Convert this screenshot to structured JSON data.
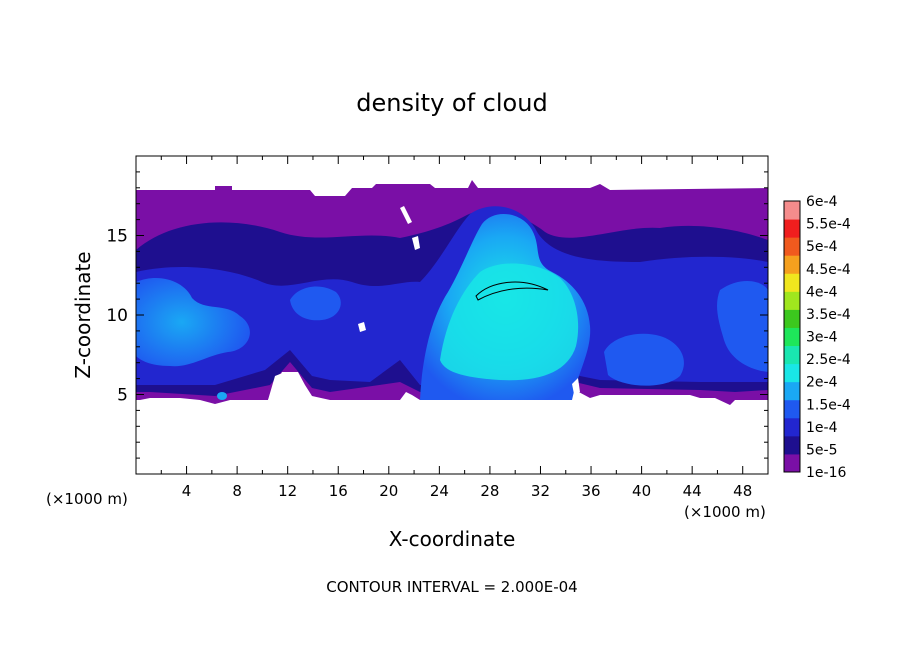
{
  "chart_data": {
    "type": "heatmap",
    "title": "density of cloud",
    "xlabel": "X-coordinate",
    "ylabel": "Z-coordinate",
    "x_unit": "(×1000 m)",
    "x_unit_right": "(×1000 m)",
    "xlim": [
      0,
      50
    ],
    "ylim": [
      0,
      20
    ],
    "x_ticks": [
      "4",
      "8",
      "12",
      "16",
      "20",
      "24",
      "28",
      "32",
      "36",
      "40",
      "44",
      "48"
    ],
    "y_ticks": [
      "5",
      "10",
      "15"
    ],
    "footer": "CONTOUR INTERVAL = 2.000E-04",
    "colorbar": {
      "labels": [
        "1e-16",
        "5e-5",
        "1e-4",
        "1.5e-4",
        "2e-4",
        "2.5e-4",
        "3e-4",
        "3.5e-4",
        "4e-4",
        "4.5e-4",
        "5e-4",
        "5.5e-4",
        "6e-4"
      ],
      "colors": [
        "#7a0fa6",
        "#1e0f8f",
        "#2226cf",
        "#1f59f0",
        "#1aa8f4",
        "#19e6e6",
        "#19e6b0",
        "#1ee65a",
        "#3cc81e",
        "#a0e61e",
        "#f0e61e",
        "#f5a01e",
        "#f05a1e",
        "#f01e1e",
        "#f58c8c"
      ]
    },
    "regions": [
      {
        "name": "upper-band",
        "level": "1e-16",
        "x": [
          0,
          50
        ],
        "z": [
          4.5,
          17.8
        ]
      },
      {
        "name": "mid-layer",
        "level": "5e-5",
        "x": [
          0,
          50
        ],
        "z": [
          6,
          15
        ]
      },
      {
        "name": "left-cloud",
        "level": "1.5e-4",
        "x": [
          0,
          4
        ],
        "z": [
          7,
          11.5
        ]
      },
      {
        "name": "central-updraft",
        "level": "2e-4",
        "x": [
          23,
          34
        ],
        "z": [
          5,
          14
        ]
      },
      {
        "name": "contour-line",
        "level": "2e-4",
        "x": [
          27,
          32
        ],
        "z": [
          11,
          12
        ]
      }
    ]
  }
}
